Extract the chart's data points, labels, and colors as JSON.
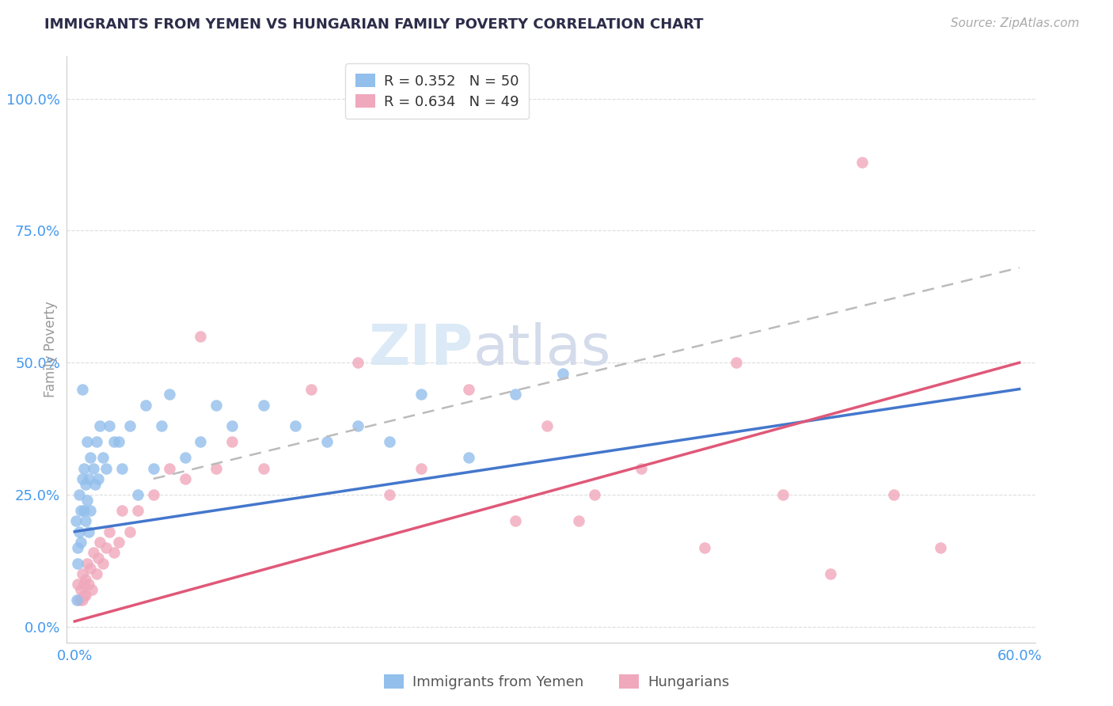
{
  "title": "IMMIGRANTS FROM YEMEN VS HUNGARIAN FAMILY POVERTY CORRELATION CHART",
  "source": "Source: ZipAtlas.com",
  "ylabel": "Family Poverty",
  "ytick_labels": [
    "0.0%",
    "25.0%",
    "50.0%",
    "75.0%",
    "100.0%"
  ],
  "ytick_values": [
    0,
    25,
    50,
    75,
    100
  ],
  "xtick_labels": [
    "0.0%",
    "",
    "",
    "",
    "",
    "",
    "60.0%"
  ],
  "xtick_values": [
    0,
    10,
    20,
    30,
    40,
    50,
    60
  ],
  "xlim": [
    -0.5,
    61
  ],
  "ylim": [
    -3,
    108
  ],
  "watermark_part1": "ZIP",
  "watermark_part2": "atlas",
  "blue_color": "#92bfec",
  "pink_color": "#f0a8bc",
  "blue_line_color": "#4477cc",
  "pink_line_color": "#e05878",
  "dashed_line_color": "#bbbbbb",
  "title_color": "#2c2c4a",
  "axis_label_color": "#4499ee",
  "ylabel_color": "#999999",
  "background_color": "#ffffff",
  "grid_color": "#dddddd",
  "blue_scatter_x": [
    0.1,
    0.2,
    0.2,
    0.3,
    0.3,
    0.4,
    0.4,
    0.5,
    0.5,
    0.6,
    0.6,
    0.7,
    0.7,
    0.8,
    0.8,
    0.9,
    0.9,
    1.0,
    1.0,
    1.2,
    1.3,
    1.4,
    1.5,
    1.6,
    1.8,
    2.0,
    2.2,
    2.5,
    2.8,
    3.0,
    3.5,
    4.0,
    4.5,
    5.0,
    5.5,
    6.0,
    7.0,
    8.0,
    9.0,
    10.0,
    12.0,
    14.0,
    16.0,
    18.0,
    20.0,
    22.0,
    25.0,
    28.0,
    31.0,
    0.15
  ],
  "blue_scatter_y": [
    20,
    15,
    12,
    25,
    18,
    22,
    16,
    45,
    28,
    30,
    22,
    27,
    20,
    35,
    24,
    28,
    18,
    32,
    22,
    30,
    27,
    35,
    28,
    38,
    32,
    30,
    38,
    35,
    35,
    30,
    38,
    25,
    42,
    30,
    38,
    44,
    32,
    35,
    42,
    38,
    42,
    38,
    35,
    38,
    35,
    44,
    32,
    44,
    48,
    5
  ],
  "pink_scatter_x": [
    0.2,
    0.3,
    0.4,
    0.5,
    0.6,
    0.7,
    0.8,
    0.9,
    1.0,
    1.1,
    1.2,
    1.4,
    1.5,
    1.6,
    1.8,
    2.0,
    2.2,
    2.5,
    2.8,
    3.0,
    3.5,
    4.0,
    5.0,
    6.0,
    7.0,
    8.0,
    9.0,
    10.0,
    12.0,
    15.0,
    18.0,
    20.0,
    22.0,
    25.0,
    28.0,
    30.0,
    33.0,
    36.0,
    40.0,
    42.0,
    45.0,
    48.0,
    50.0,
    52.0,
    55.0,
    0.5,
    0.6,
    0.7,
    32.0
  ],
  "pink_scatter_y": [
    8,
    5,
    7,
    10,
    6,
    9,
    12,
    8,
    11,
    7,
    14,
    10,
    13,
    16,
    12,
    15,
    18,
    14,
    16,
    22,
    18,
    22,
    25,
    30,
    28,
    55,
    30,
    35,
    30,
    45,
    50,
    25,
    30,
    45,
    20,
    38,
    25,
    30,
    15,
    50,
    25,
    10,
    88,
    25,
    15,
    5,
    8,
    6,
    20
  ],
  "blue_trend": [
    0,
    60,
    18,
    45
  ],
  "pink_trend": [
    0,
    60,
    1,
    50
  ],
  "dashed_trend": [
    5,
    60,
    28,
    68
  ]
}
